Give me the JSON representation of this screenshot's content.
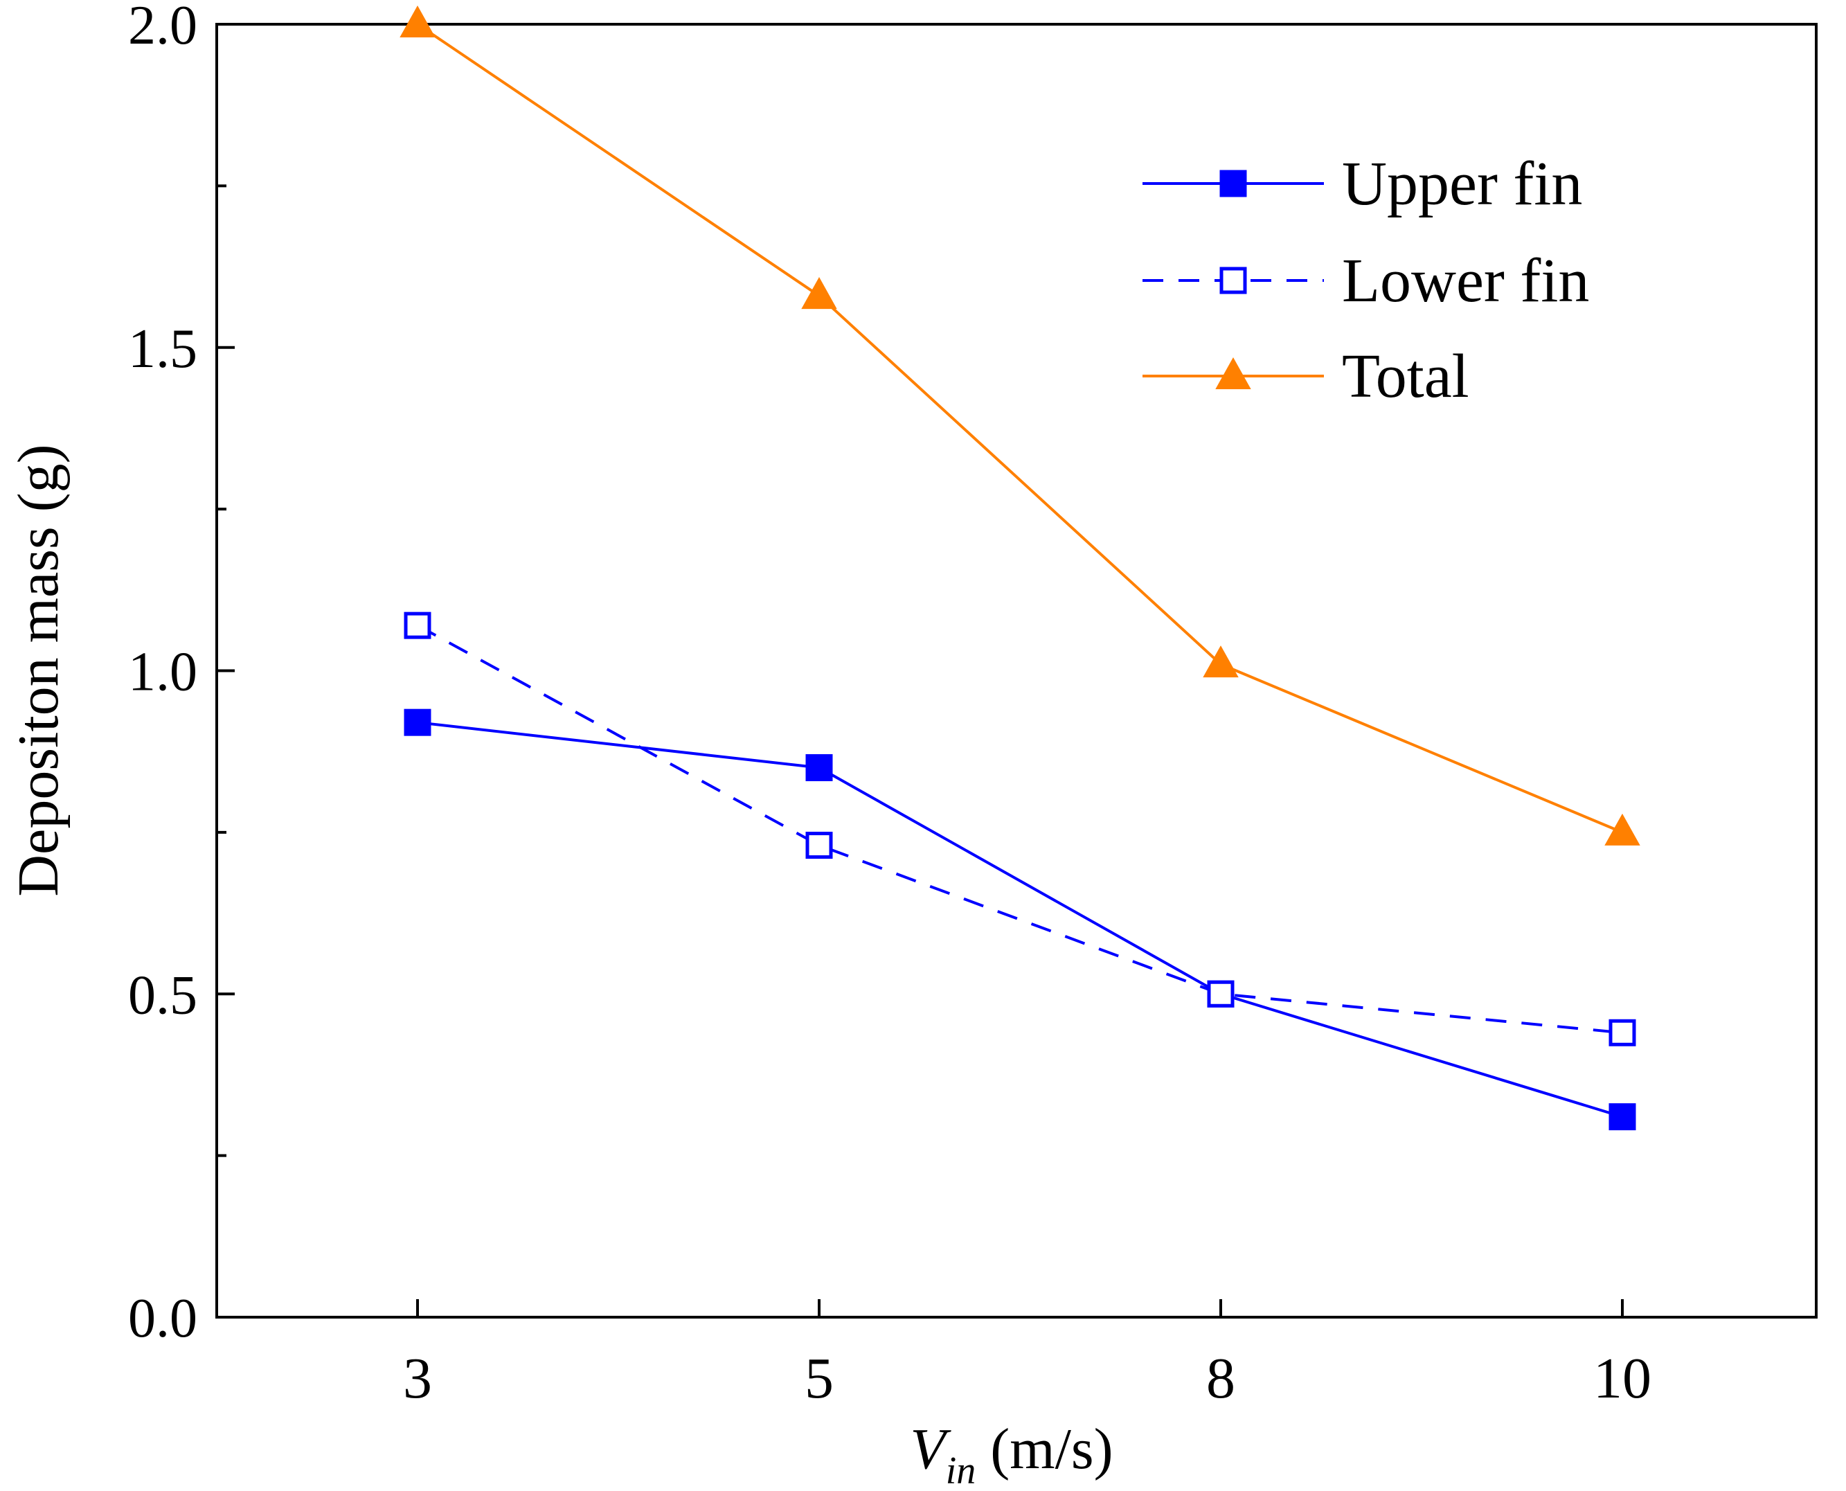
{
  "chart_data": {
    "type": "line",
    "title": "",
    "xlabel": {
      "main": "V",
      "subscript": "in",
      "unit": " (m/s)"
    },
    "ylabel": "Depositon mass (g)",
    "categories": [
      "3",
      "5",
      "8",
      "10"
    ],
    "ylim": [
      0,
      2.0
    ],
    "yticks": [
      "0.0",
      "0.5",
      "1.0",
      "1.5",
      "2.0"
    ],
    "minor_ytick_step": 0.25,
    "grid": false,
    "legend_position": "top-right",
    "series": [
      {
        "name": "Upper fin",
        "values": [
          0.92,
          0.85,
          0.5,
          0.31
        ],
        "color": "#0000ff",
        "dash": "solid",
        "marker": "square-filled"
      },
      {
        "name": "Lower fin",
        "values": [
          1.07,
          0.73,
          0.5,
          0.44
        ],
        "color": "#0000ff",
        "dash": "dashed",
        "marker": "square-open"
      },
      {
        "name": "Total",
        "values": [
          2.0,
          1.58,
          1.01,
          0.75
        ],
        "color": "#ff8000",
        "dash": "solid",
        "marker": "triangle-filled"
      }
    ]
  }
}
